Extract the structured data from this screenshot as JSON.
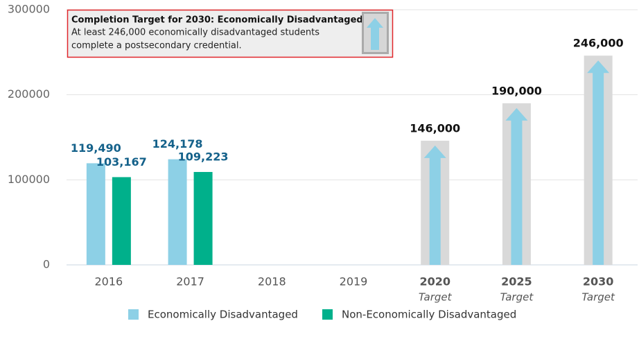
{
  "chart_data": {
    "type": "bar",
    "categories": [
      "2016",
      "2017",
      "2018",
      "2019",
      "2020",
      "2025",
      "2030"
    ],
    "category_sublabels": [
      null,
      null,
      null,
      null,
      "Target",
      "Target",
      "Target"
    ],
    "series": [
      {
        "name": "Economically Disadvantaged",
        "color": "#8dd0e6",
        "values": [
          119490,
          124178,
          null,
          null,
          null,
          null,
          null
        ],
        "value_labels": [
          "119,490",
          "124,178",
          null,
          null,
          null,
          null,
          null
        ]
      },
      {
        "name": "Non-Economically Disadvantaged",
        "color": "#00b08b",
        "values": [
          103167,
          109223,
          null,
          null,
          null,
          null,
          null
        ],
        "value_labels": [
          "103,167",
          "109,223",
          null,
          null,
          null,
          null,
          null
        ]
      }
    ],
    "targets": {
      "color": "#d9d9d9",
      "arrow_color": "#8dd0e6",
      "values": [
        null,
        null,
        null,
        null,
        146000,
        190000,
        246000
      ],
      "value_labels": [
        null,
        null,
        null,
        null,
        "146,000",
        "190,000",
        "246,000"
      ]
    },
    "ylim": [
      0,
      300000
    ],
    "yticks": [
      0,
      100000,
      200000,
      300000
    ],
    "grid": true,
    "legend": "bottom",
    "tooltip": {
      "title": "Completion Target for 2030: Economically Disadvantaged",
      "lines": [
        "At least 246,000 economically disadvantaged students",
        "complete a postsecondary credential."
      ]
    }
  }
}
